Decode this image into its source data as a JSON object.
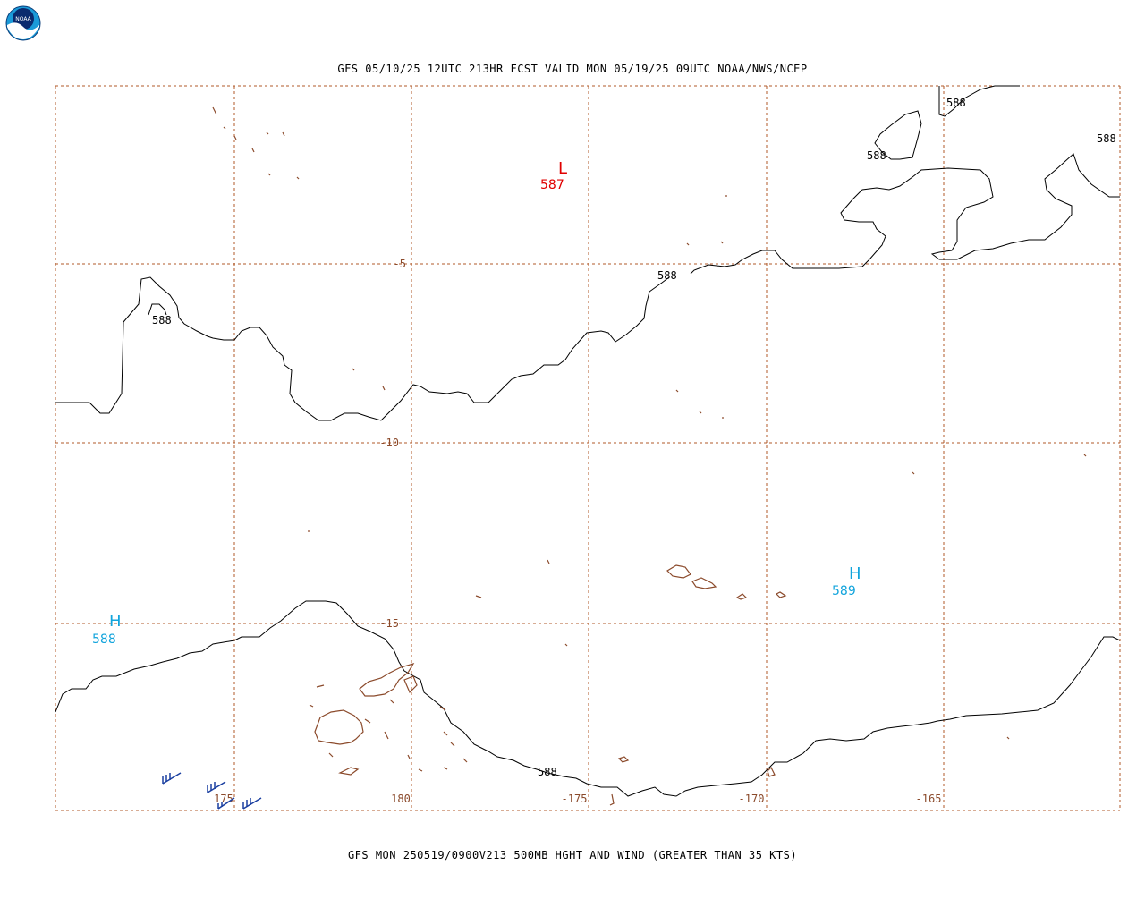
{
  "header": {
    "title": "GFS 05/10/25 12UTC 213HR FCST VALID MON 05/19/25 09UTC NOAA/NWS/NCEP",
    "logo_text": "NOAA"
  },
  "footer": {
    "title": "GFS MON 250519/0900V213 500MB HGHT AND WIND (GREATER THAN 35 KTS)"
  },
  "map": {
    "lat_labels": [
      "-5",
      "-10",
      "-15"
    ],
    "lon_labels": [
      "175",
      "180",
      "-175",
      "-170",
      "-165"
    ],
    "contour_labels": [
      "588",
      "588",
      "588",
      "588",
      "588",
      "588"
    ],
    "pressure_centers": [
      {
        "letter": "L",
        "value": "587",
        "color": "#e00000"
      },
      {
        "letter": "H",
        "value": "589",
        "color": "#12a4dc"
      },
      {
        "letter": "H",
        "value": "588",
        "color": "#12a4dc"
      }
    ],
    "colors": {
      "grid": "#b05a2a",
      "coastline": "#8b4a2b",
      "contour": "#000000",
      "wind_barbs": "#1a3fa0"
    }
  }
}
